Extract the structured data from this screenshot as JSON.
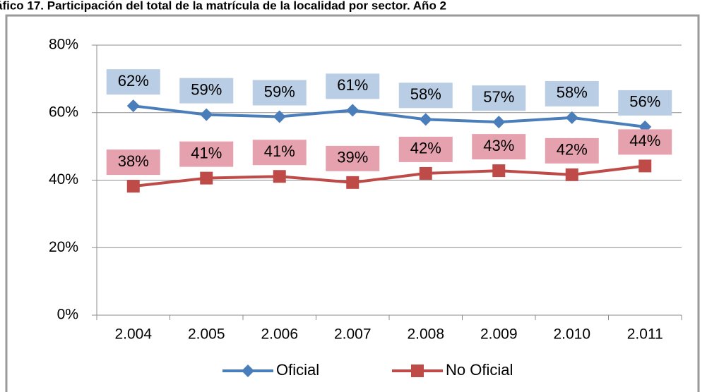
{
  "chart_data": {
    "type": "line",
    "title": "áfico 17. Participación del total de la matrícula de la localidad por sector. Año 2",
    "categories": [
      "2.004",
      "2.005",
      "2.006",
      "2.007",
      "2.008",
      "2.009",
      "2.010",
      "2.011"
    ],
    "series": [
      {
        "name": "Oficial",
        "color": "#4a7ebb",
        "label_color": "#b9cde5",
        "marker": "diamond",
        "values": [
          62,
          59.4,
          58.8,
          60.7,
          58,
          57.2,
          58.5,
          55.8
        ],
        "value_labels": [
          "62%",
          "59%",
          "59%",
          "61%",
          "58%",
          "57%",
          "58%",
          "56%"
        ]
      },
      {
        "name": "No Oficial",
        "color": "#be4b48",
        "label_color": "#e6a1ae",
        "marker": "square",
        "values": [
          38.2,
          40.6,
          41.1,
          39.3,
          42,
          42.8,
          41.6,
          44.2
        ],
        "value_labels": [
          "38%",
          "41%",
          "41%",
          "39%",
          "42%",
          "43%",
          "42%",
          "44%"
        ]
      }
    ],
    "ylim": [
      0,
      80
    ],
    "yticks": [
      {
        "value": 0,
        "label": "0%"
      },
      {
        "value": 20,
        "label": "20%"
      },
      {
        "value": 40,
        "label": "40%"
      },
      {
        "value": 60,
        "label": "60%"
      },
      {
        "value": 80,
        "label": "80%"
      }
    ],
    "grid": true,
    "legend": "bottom"
  }
}
